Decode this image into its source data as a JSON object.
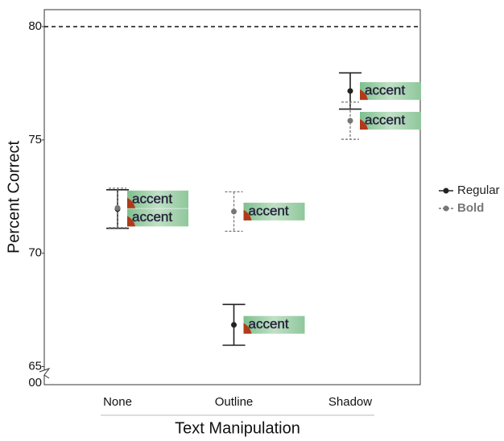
{
  "chart_data": {
    "type": "errorpoint",
    "y_label": "Percent Correct",
    "x_label": "Text Manipulation",
    "categories": [
      "None",
      "Outline",
      "Shadow"
    ],
    "series": [
      {
        "name": "Regular",
        "color": "#222222",
        "dash": false,
        "values": [
          71.95,
          66.84,
          77.16
        ],
        "errors": [
          0.85,
          0.9,
          0.8
        ]
      },
      {
        "name": "Bold",
        "color": "#777777",
        "dash": true,
        "values": [
          72.0,
          71.84,
          75.85
        ],
        "errors": [
          0.87,
          0.87,
          0.82
        ]
      }
    ],
    "ylim": [
      64.2,
      80.75
    ],
    "yticks": [
      65,
      70,
      75,
      80
    ],
    "y_break_label": "00",
    "reference_line": 80,
    "sample_label": "accent",
    "legend": "right",
    "grid": false
  }
}
